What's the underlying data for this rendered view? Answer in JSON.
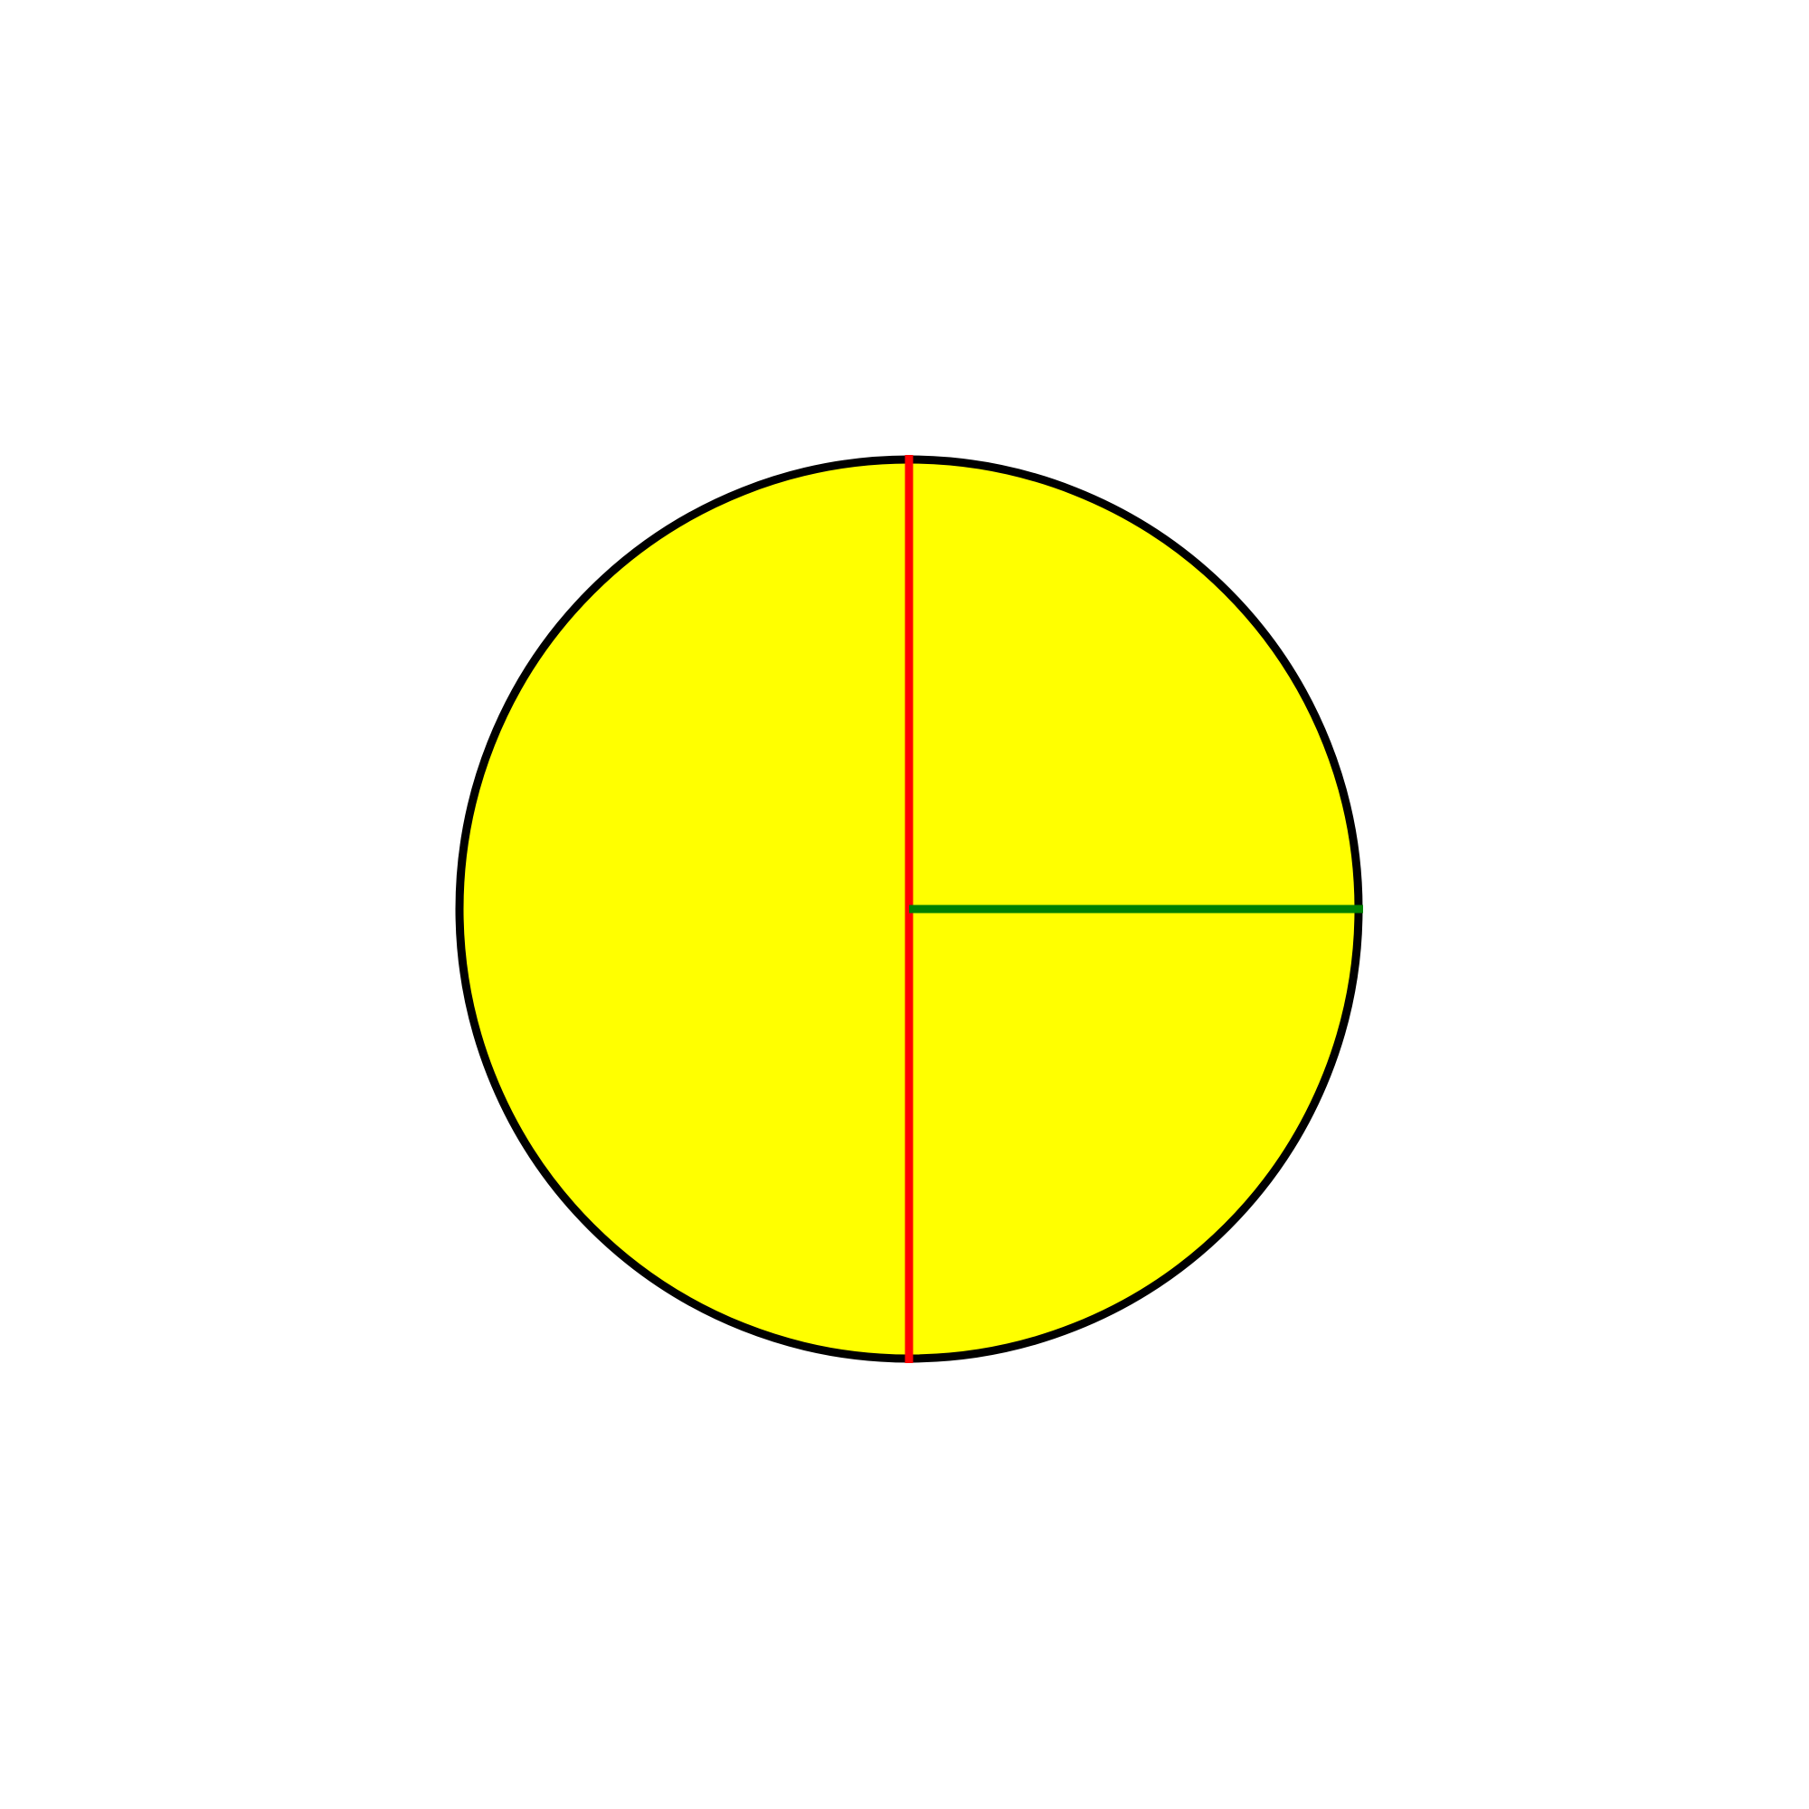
{
  "diagram": {
    "shape": "circle",
    "colors": {
      "background": "#ffffff",
      "circle_fill": "#ffff00",
      "circle_outline": "#000000",
      "diameter_line": "#ff0000",
      "radius_line": "#008000"
    },
    "elements": [
      {
        "name": "circle",
        "kind": "circle",
        "color_key": "circle_fill"
      },
      {
        "name": "diameter-line",
        "kind": "segment",
        "description_color": "red"
      },
      {
        "name": "radius-line",
        "kind": "segment",
        "description_color": "green"
      }
    ]
  }
}
